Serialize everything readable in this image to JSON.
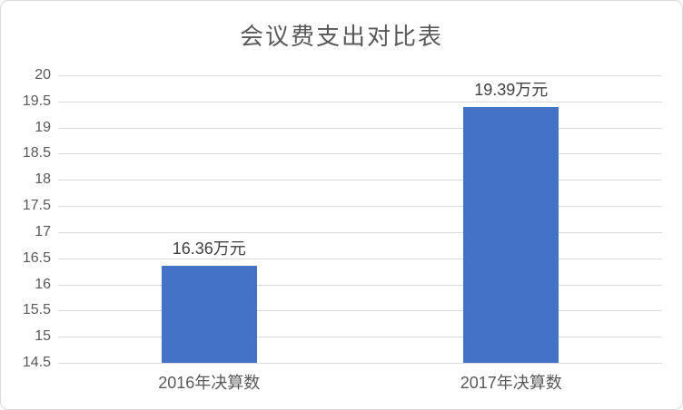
{
  "frame": {
    "background": "#FFFFFF",
    "border_color": "#D9D9D9"
  },
  "chart_data": {
    "type": "bar",
    "title": "会议费支出对比表",
    "categories": [
      "2016年决算数",
      "2017年决算数"
    ],
    "values": [
      16.36,
      19.39
    ],
    "data_labels": [
      "16.36万元",
      "19.39万元"
    ],
    "xlabel": "",
    "ylabel": "",
    "ylim": [
      14.5,
      20
    ],
    "y_tick_step": 0.5,
    "y_ticks": [
      20,
      19.5,
      19,
      18.5,
      18,
      17.5,
      17,
      16.5,
      16,
      15.5,
      15,
      14.5
    ],
    "grid": true,
    "legend": "none",
    "colors": {
      "bar": "#4472C4",
      "gridline": "#D9D9D9",
      "axis_text": "#595959",
      "title_text": "#595959",
      "data_label_text": "#404040"
    }
  }
}
